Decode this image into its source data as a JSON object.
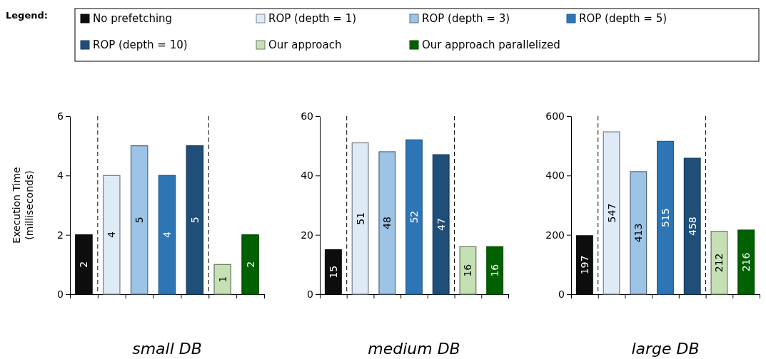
{
  "chart_data": [
    {
      "type": "bar",
      "xlabel": "small DB",
      "ylabel": "Execution Time (milliseconds)",
      "legend_title": "Legend:",
      "legend": "top",
      "tick_labels": "y",
      "data_labels": true,
      "categories": [
        null,
        null,
        null,
        null,
        null,
        null,
        null
      ],
      "ylim": [
        0,
        6
      ],
      "yticks": [
        0,
        2,
        4,
        6
      ],
      "series": [
        {
          "name": "No prefetching",
          "color": "#0d0d0d",
          "values": [
            2,
            null,
            null,
            null,
            null,
            null,
            null
          ]
        },
        {
          "name": "ROP (depth = 1)",
          "color": "#deebf7",
          "values": [
            null,
            4,
            null,
            null,
            null,
            null,
            null
          ]
        },
        {
          "name": "ROP (depth = 3)",
          "color": "#9dc3e6",
          "values": [
            null,
            null,
            5,
            null,
            null,
            null,
            null
          ]
        },
        {
          "name": "ROP (depth = 5)",
          "color": "#2e75b6",
          "values": [
            null,
            null,
            null,
            4,
            null,
            null,
            null
          ]
        },
        {
          "name": "ROP (depth = 10)",
          "color": "#1f4e79",
          "values": [
            null,
            null,
            null,
            null,
            5,
            null,
            null
          ]
        },
        {
          "name": "Our approach",
          "color": "#c5e0b4",
          "values": [
            null,
            null,
            null,
            null,
            null,
            1,
            null
          ]
        },
        {
          "name": "Our approach parallelized",
          "color": "#006100",
          "values": [
            null,
            null,
            null,
            null,
            null,
            null,
            2
          ]
        }
      ]
    },
    {
      "type": "bar",
      "xlabel": "medium DB",
      "tick_labels": "y",
      "data_labels": true,
      "categories": [
        null,
        null,
        null,
        null,
        null,
        null,
        null
      ],
      "ylim": [
        0,
        60
      ],
      "yticks": [
        0,
        20,
        40,
        60
      ],
      "series": [
        {
          "color": "#0d0d0d",
          "values": [
            15,
            null,
            null,
            null,
            null,
            null,
            null
          ]
        },
        {
          "color": "#deebf7",
          "values": [
            null,
            51,
            null,
            null,
            null,
            null,
            null
          ]
        },
        {
          "color": "#9dc3e6",
          "values": [
            null,
            null,
            48,
            null,
            null,
            null,
            null
          ]
        },
        {
          "color": "#2e75b6",
          "values": [
            null,
            null,
            null,
            52,
            null,
            null,
            null
          ]
        },
        {
          "color": "#1f4e79",
          "values": [
            null,
            null,
            null,
            null,
            47,
            null,
            null
          ]
        },
        {
          "color": "#c5e0b4",
          "values": [
            null,
            null,
            null,
            null,
            null,
            16,
            null
          ]
        },
        {
          "color": "#006100",
          "values": [
            null,
            null,
            null,
            null,
            null,
            null,
            16
          ]
        }
      ]
    },
    {
      "type": "bar",
      "xlabel": "large DB",
      "tick_labels": "y",
      "data_labels": true,
      "categories": [
        null,
        null,
        null,
        null,
        null,
        null,
        null
      ],
      "ylim": [
        0,
        600
      ],
      "yticks": [
        0,
        200,
        400,
        600
      ],
      "series": [
        {
          "color": "#0d0d0d",
          "values": [
            197,
            null,
            null,
            null,
            null,
            null,
            null
          ]
        },
        {
          "color": "#deebf7",
          "values": [
            null,
            547,
            null,
            null,
            null,
            null,
            null
          ]
        },
        {
          "color": "#9dc3e6",
          "values": [
            null,
            null,
            413,
            null,
            null,
            null,
            null
          ]
        },
        {
          "color": "#2e75b6",
          "values": [
            null,
            null,
            null,
            515,
            null,
            null,
            null
          ]
        },
        {
          "color": "#1f4e79",
          "values": [
            null,
            null,
            null,
            null,
            458,
            null,
            null
          ]
        },
        {
          "color": "#c5e0b4",
          "values": [
            null,
            null,
            null,
            null,
            null,
            212,
            null
          ]
        },
        {
          "color": "#006100",
          "values": [
            null,
            null,
            null,
            null,
            null,
            null,
            216
          ]
        }
      ]
    }
  ]
}
